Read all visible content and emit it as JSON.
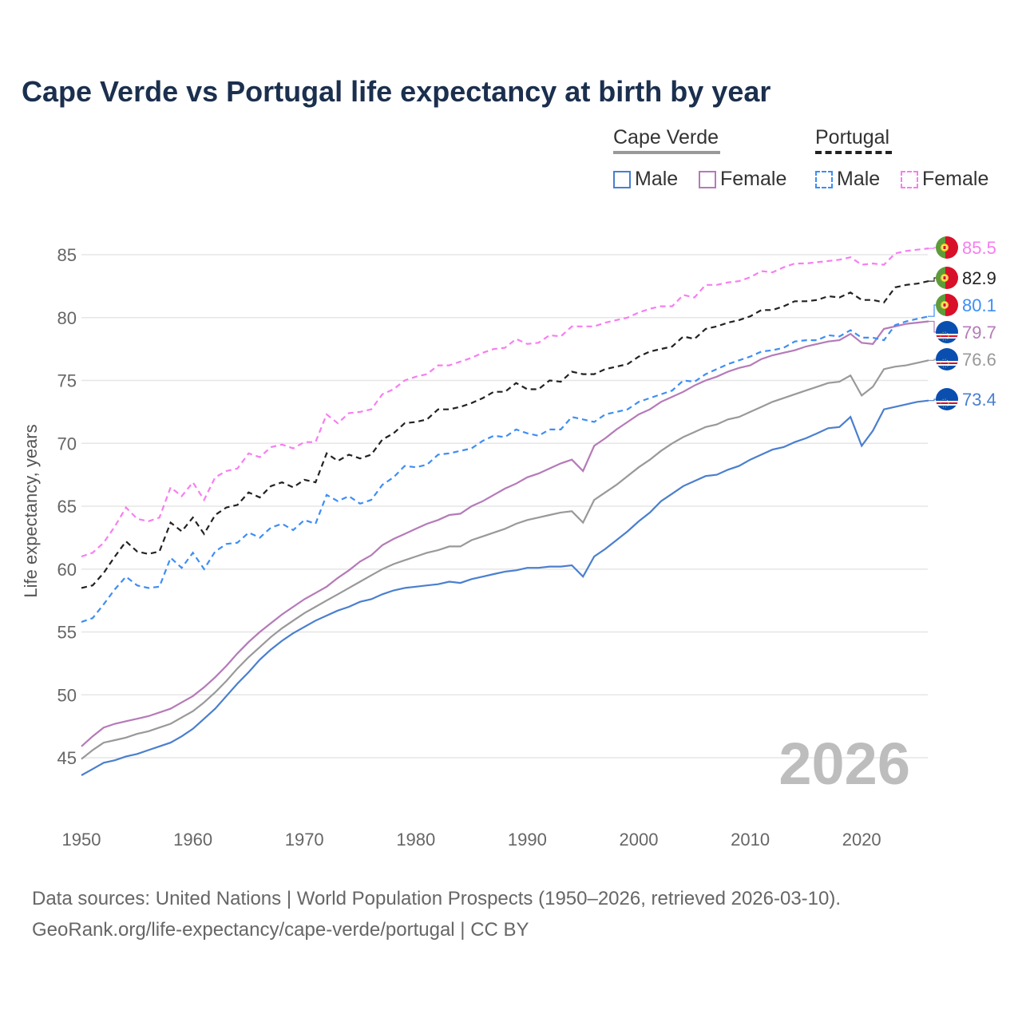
{
  "chart_data": {
    "type": "line",
    "title": "Cape Verde vs Portugal life expectancy at birth by year",
    "xlabel": "",
    "ylabel": "Life expectancy, years",
    "xlim": [
      1950,
      2026
    ],
    "ylim": [
      42.5,
      86.5
    ],
    "x_ticks": [
      1950,
      1960,
      1970,
      1980,
      1990,
      2000,
      2010,
      2020
    ],
    "y_ticks": [
      45,
      50,
      55,
      60,
      65,
      70,
      75,
      80,
      85
    ],
    "grid": "horizontal",
    "legend_placement": "top-right",
    "legend": {
      "groups": [
        {
          "name": "Cape Verde",
          "items": [
            "Male",
            "Female"
          ]
        },
        {
          "name": "Portugal",
          "items": [
            "Male",
            "Female"
          ]
        }
      ]
    },
    "year_watermark": "2026",
    "x_start": 1950,
    "series": [
      {
        "id": "pt-female",
        "name": "Portugal Female",
        "country": "Portugal",
        "color": "#f77ef0",
        "dashed": true,
        "end_label": "85.5",
        "values": [
          61.0,
          61.3,
          62.1,
          63.4,
          64.9,
          64.0,
          63.8,
          64.1,
          66.5,
          65.8,
          66.9,
          65.5,
          67.3,
          67.8,
          68.0,
          69.2,
          68.9,
          69.7,
          69.9,
          69.6,
          70.1,
          70.1,
          72.3,
          71.6,
          72.4,
          72.5,
          72.7,
          73.9,
          74.3,
          75.0,
          75.3,
          75.5,
          76.2,
          76.2,
          76.5,
          76.8,
          77.2,
          77.5,
          77.6,
          78.3,
          77.9,
          78.0,
          78.6,
          78.5,
          79.3,
          79.3,
          79.3,
          79.6,
          79.8,
          80.0,
          80.4,
          80.7,
          80.9,
          80.9,
          81.8,
          81.6,
          82.6,
          82.6,
          82.8,
          82.9,
          83.2,
          83.7,
          83.6,
          84.0,
          84.3,
          84.3,
          84.4,
          84.5,
          84.6,
          84.8,
          84.2,
          84.3,
          84.2,
          85.1,
          85.3,
          85.4,
          85.5
        ]
      },
      {
        "id": "pt-total",
        "name": "Portugal",
        "country": "Portugal",
        "color": "#222222",
        "dashed": true,
        "end_label": "82.9",
        "values": [
          58.5,
          58.7,
          59.7,
          61.0,
          62.2,
          61.4,
          61.2,
          61.4,
          63.7,
          63.0,
          64.1,
          62.8,
          64.3,
          64.9,
          65.1,
          66.1,
          65.7,
          66.6,
          66.9,
          66.5,
          67.1,
          66.9,
          69.2,
          68.6,
          69.1,
          68.8,
          69.1,
          70.3,
          70.8,
          71.6,
          71.7,
          71.9,
          72.7,
          72.7,
          72.9,
          73.2,
          73.6,
          74.1,
          74.1,
          74.8,
          74.3,
          74.3,
          75.0,
          74.9,
          75.7,
          75.5,
          75.5,
          75.9,
          76.1,
          76.3,
          76.9,
          77.3,
          77.5,
          77.7,
          78.5,
          78.3,
          79.1,
          79.3,
          79.6,
          79.8,
          80.1,
          80.6,
          80.6,
          80.9,
          81.3,
          81.3,
          81.4,
          81.7,
          81.6,
          82.0,
          81.4,
          81.4,
          81.2,
          82.4,
          82.6,
          82.7,
          82.9
        ]
      },
      {
        "id": "pt-male",
        "name": "Portugal Male",
        "country": "Portugal",
        "color": "#3d8ef5",
        "dashed": true,
        "end_label": "80.1",
        "values": [
          55.8,
          56.1,
          57.2,
          58.4,
          59.4,
          58.7,
          58.5,
          58.6,
          60.9,
          60.1,
          61.3,
          60.0,
          61.4,
          62.0,
          62.1,
          62.9,
          62.5,
          63.3,
          63.6,
          63.1,
          63.9,
          63.6,
          65.9,
          65.4,
          65.8,
          65.2,
          65.5,
          66.7,
          67.3,
          68.2,
          68.1,
          68.3,
          69.1,
          69.2,
          69.4,
          69.6,
          70.2,
          70.6,
          70.5,
          71.1,
          70.8,
          70.6,
          71.1,
          71.1,
          72.1,
          71.9,
          71.7,
          72.3,
          72.5,
          72.7,
          73.3,
          73.6,
          73.9,
          74.2,
          75.0,
          74.9,
          75.5,
          75.9,
          76.3,
          76.6,
          76.9,
          77.3,
          77.4,
          77.6,
          78.1,
          78.2,
          78.2,
          78.6,
          78.5,
          79.0,
          78.4,
          78.4,
          78.2,
          79.4,
          79.7,
          79.9,
          80.1
        ]
      },
      {
        "id": "cv-female",
        "name": "Cape Verde Female",
        "country": "Cape Verde",
        "color": "#b57ab8",
        "dashed": false,
        "end_label": "79.7",
        "values": [
          45.9,
          46.7,
          47.4,
          47.7,
          47.9,
          48.1,
          48.3,
          48.6,
          48.9,
          49.4,
          49.9,
          50.6,
          51.4,
          52.3,
          53.3,
          54.2,
          55.0,
          55.7,
          56.4,
          57.0,
          57.6,
          58.1,
          58.6,
          59.3,
          59.9,
          60.6,
          61.1,
          61.9,
          62.4,
          62.8,
          63.2,
          63.6,
          63.9,
          64.3,
          64.4,
          65.0,
          65.4,
          65.9,
          66.4,
          66.8,
          67.3,
          67.6,
          68.0,
          68.4,
          68.7,
          67.8,
          69.8,
          70.4,
          71.1,
          71.7,
          72.3,
          72.7,
          73.3,
          73.7,
          74.1,
          74.6,
          75.0,
          75.3,
          75.7,
          76.0,
          76.2,
          76.7,
          77.0,
          77.2,
          77.4,
          77.7,
          77.9,
          78.1,
          78.2,
          78.7,
          78.0,
          77.9,
          79.1,
          79.3,
          79.5,
          79.6,
          79.7
        ]
      },
      {
        "id": "cv-total",
        "name": "Cape Verde",
        "country": "Cape Verde",
        "color": "#999999",
        "dashed": false,
        "end_label": "76.6",
        "values": [
          44.9,
          45.6,
          46.2,
          46.4,
          46.6,
          46.9,
          47.1,
          47.4,
          47.7,
          48.2,
          48.7,
          49.4,
          50.2,
          51.1,
          52.1,
          53.0,
          53.8,
          54.6,
          55.3,
          55.9,
          56.5,
          57.0,
          57.5,
          58.0,
          58.5,
          59.0,
          59.5,
          60.0,
          60.4,
          60.7,
          61.0,
          61.3,
          61.5,
          61.8,
          61.8,
          62.3,
          62.6,
          62.9,
          63.2,
          63.6,
          63.9,
          64.1,
          64.3,
          64.5,
          64.6,
          63.7,
          65.5,
          66.1,
          66.7,
          67.4,
          68.1,
          68.7,
          69.4,
          70.0,
          70.5,
          70.9,
          71.3,
          71.5,
          71.9,
          72.1,
          72.5,
          72.9,
          73.3,
          73.6,
          73.9,
          74.2,
          74.5,
          74.8,
          74.9,
          75.4,
          73.8,
          74.5,
          75.9,
          76.1,
          76.2,
          76.4,
          76.6
        ]
      },
      {
        "id": "cv-male",
        "name": "Cape Verde Male",
        "country": "Cape Verde",
        "color": "#4a7fcf",
        "dashed": false,
        "end_label": "73.4",
        "values": [
          43.6,
          44.1,
          44.6,
          44.8,
          45.1,
          45.3,
          45.6,
          45.9,
          46.2,
          46.7,
          47.3,
          48.1,
          48.9,
          49.9,
          50.9,
          51.8,
          52.8,
          53.6,
          54.3,
          54.9,
          55.4,
          55.9,
          56.3,
          56.7,
          57.0,
          57.4,
          57.6,
          58.0,
          58.3,
          58.5,
          58.6,
          58.7,
          58.8,
          59.0,
          58.9,
          59.2,
          59.4,
          59.6,
          59.8,
          59.9,
          60.1,
          60.1,
          60.2,
          60.2,
          60.3,
          59.4,
          61.0,
          61.6,
          62.3,
          63.0,
          63.8,
          64.5,
          65.4,
          66.0,
          66.6,
          67.0,
          67.4,
          67.5,
          67.9,
          68.2,
          68.7,
          69.1,
          69.5,
          69.7,
          70.1,
          70.4,
          70.8,
          71.2,
          71.3,
          72.1,
          69.8,
          71.0,
          72.7,
          72.9,
          73.1,
          73.3,
          73.4
        ]
      }
    ]
  },
  "footer": {
    "line1": "Data sources: United Nations | World Population Prospects (1950–2026, retrieved 2026-03-10).",
    "line2": "GeoRank.org/life-expectancy/cape-verde/portugal | CC BY"
  }
}
